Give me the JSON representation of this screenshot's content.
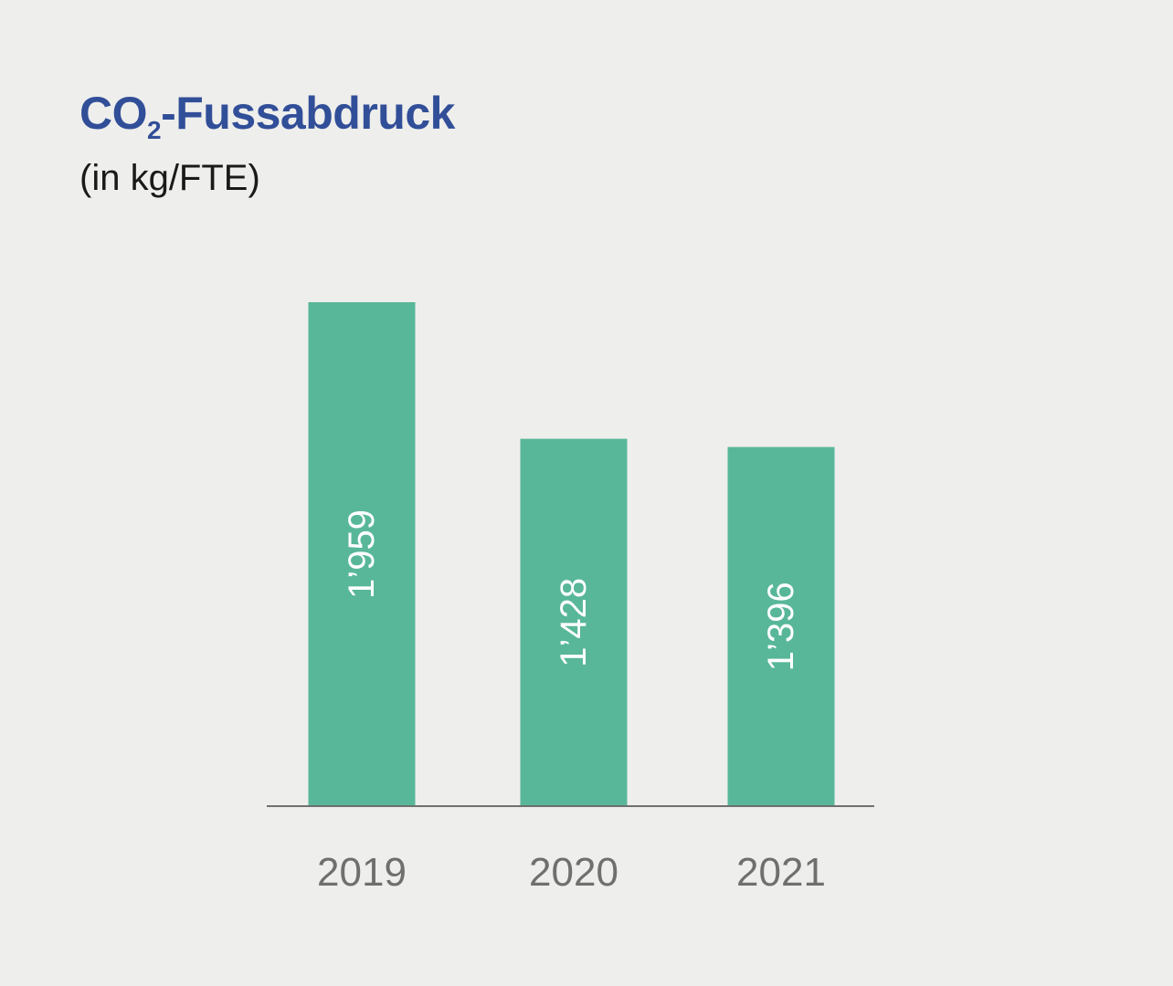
{
  "chart_data": {
    "type": "bar",
    "title_prefix": "CO",
    "title_subscript": "2",
    "title_suffix": "-Fussabdruck",
    "subtitle": "(in kg/FTE)",
    "categories": [
      "2019",
      "2020",
      "2021"
    ],
    "values": [
      1959,
      1428,
      1396
    ],
    "value_labels": [
      "1’959",
      "1’428",
      "1’396"
    ],
    "ylim": [
      0,
      1959
    ],
    "grid": false,
    "y_axis_shown": false,
    "value_label_orientation": "rotated vertical, inside bar",
    "colors": {
      "bar": "#58b799",
      "bar_label": "#ffffff",
      "axis": "#6f6f6f",
      "tick_label": "#6f6f6f",
      "title": "#314e98",
      "subtitle": "#1a1a1a",
      "background": "#eeeeec"
    }
  }
}
